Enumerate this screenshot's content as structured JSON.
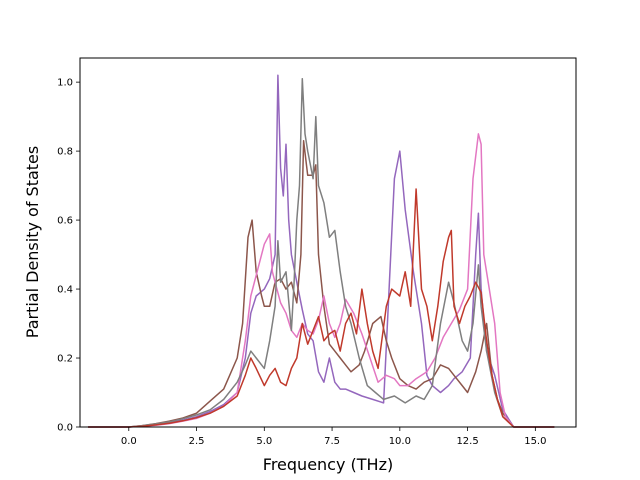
{
  "chart_data": {
    "type": "line",
    "xlabel": "Frequency (THz)",
    "ylabel": "Partial Density of States",
    "xlim": [
      -1.8,
      16.5
    ],
    "ylim": [
      0.0,
      1.07
    ],
    "xticks": [
      0.0,
      2.5,
      5.0,
      7.5,
      10.0,
      12.5,
      15.0
    ],
    "xtick_labels": [
      "0.0",
      "2.5",
      "5.0",
      "7.5",
      "10.0",
      "12.5",
      "15.0"
    ],
    "yticks": [
      0.0,
      0.2,
      0.4,
      0.6,
      0.8,
      1.0
    ],
    "ytick_labels": [
      "0.0",
      "0.2",
      "0.4",
      "0.6",
      "0.8",
      "1.0"
    ],
    "grid": false,
    "legend": "none",
    "series": [
      {
        "color": "#9467bd",
        "points": [
          [
            -1.5,
            0
          ],
          [
            0,
            0
          ],
          [
            0.5,
            0.003
          ],
          [
            1,
            0.007
          ],
          [
            1.5,
            0.013
          ],
          [
            2,
            0.02
          ],
          [
            2.5,
            0.03
          ],
          [
            3,
            0.045
          ],
          [
            3.5,
            0.065
          ],
          [
            4,
            0.1
          ],
          [
            4.3,
            0.2
          ],
          [
            4.5,
            0.33
          ],
          [
            4.7,
            0.38
          ],
          [
            5.0,
            0.4
          ],
          [
            5.2,
            0.43
          ],
          [
            5.4,
            0.5
          ],
          [
            5.5,
            1.02
          ],
          [
            5.6,
            0.75
          ],
          [
            5.7,
            0.67
          ],
          [
            5.8,
            0.82
          ],
          [
            5.9,
            0.6
          ],
          [
            6.0,
            0.5
          ],
          [
            6.2,
            0.42
          ],
          [
            6.4,
            0.34
          ],
          [
            6.6,
            0.27
          ],
          [
            6.8,
            0.25
          ],
          [
            7.0,
            0.16
          ],
          [
            7.2,
            0.13
          ],
          [
            7.4,
            0.2
          ],
          [
            7.6,
            0.13
          ],
          [
            7.8,
            0.11
          ],
          [
            8.0,
            0.11
          ],
          [
            8.3,
            0.1
          ],
          [
            8.6,
            0.09
          ],
          [
            9.0,
            0.08
          ],
          [
            9.4,
            0.07
          ],
          [
            9.8,
            0.72
          ],
          [
            10.0,
            0.8
          ],
          [
            10.2,
            0.63
          ],
          [
            10.5,
            0.45
          ],
          [
            10.8,
            0.3
          ],
          [
            11.0,
            0.15
          ],
          [
            11.2,
            0.12
          ],
          [
            11.5,
            0.1
          ],
          [
            11.8,
            0.12
          ],
          [
            12.0,
            0.14
          ],
          [
            12.3,
            0.16
          ],
          [
            12.6,
            0.2
          ],
          [
            12.8,
            0.5
          ],
          [
            12.9,
            0.62
          ],
          [
            13.0,
            0.4
          ],
          [
            13.2,
            0.22
          ],
          [
            13.5,
            0.15
          ],
          [
            13.8,
            0.05
          ],
          [
            14.2,
            0.0
          ],
          [
            15.7,
            0
          ]
        ]
      },
      {
        "color": "#8c564b",
        "points": [
          [
            -1.5,
            0
          ],
          [
            0,
            0
          ],
          [
            0.5,
            0.004
          ],
          [
            1,
            0.01
          ],
          [
            1.5,
            0.017
          ],
          [
            2,
            0.026
          ],
          [
            2.5,
            0.04
          ],
          [
            3,
            0.075
          ],
          [
            3.5,
            0.11
          ],
          [
            4,
            0.2
          ],
          [
            4.2,
            0.3
          ],
          [
            4.4,
            0.55
          ],
          [
            4.55,
            0.6
          ],
          [
            4.7,
            0.45
          ],
          [
            4.9,
            0.38
          ],
          [
            5.0,
            0.35
          ],
          [
            5.2,
            0.35
          ],
          [
            5.4,
            0.42
          ],
          [
            5.6,
            0.43
          ],
          [
            5.8,
            0.4
          ],
          [
            6.0,
            0.42
          ],
          [
            6.2,
            0.36
          ],
          [
            6.35,
            0.5
          ],
          [
            6.45,
            0.83
          ],
          [
            6.6,
            0.73
          ],
          [
            6.8,
            0.73
          ],
          [
            6.9,
            0.76
          ],
          [
            7.0,
            0.5
          ],
          [
            7.2,
            0.35
          ],
          [
            7.4,
            0.24
          ],
          [
            7.6,
            0.22
          ],
          [
            7.8,
            0.2
          ],
          [
            8.0,
            0.18
          ],
          [
            8.2,
            0.16
          ],
          [
            8.5,
            0.18
          ],
          [
            8.7,
            0.22
          ],
          [
            9.0,
            0.3
          ],
          [
            9.3,
            0.32
          ],
          [
            9.5,
            0.25
          ],
          [
            9.7,
            0.2
          ],
          [
            10.0,
            0.14
          ],
          [
            10.3,
            0.12
          ],
          [
            10.6,
            0.11
          ],
          [
            10.9,
            0.13
          ],
          [
            11.2,
            0.14
          ],
          [
            11.5,
            0.18
          ],
          [
            11.8,
            0.17
          ],
          [
            12.0,
            0.15
          ],
          [
            12.3,
            0.12
          ],
          [
            12.5,
            0.1
          ],
          [
            12.8,
            0.16
          ],
          [
            13.0,
            0.22
          ],
          [
            13.2,
            0.3
          ],
          [
            13.4,
            0.15
          ],
          [
            13.6,
            0.08
          ],
          [
            13.8,
            0.04
          ],
          [
            14.2,
            0.0
          ],
          [
            15.7,
            0
          ]
        ]
      },
      {
        "color": "#e377c2",
        "points": [
          [
            -1.5,
            0
          ],
          [
            0,
            0
          ],
          [
            0.5,
            0.002
          ],
          [
            1,
            0.005
          ],
          [
            1.5,
            0.01
          ],
          [
            2,
            0.017
          ],
          [
            2.5,
            0.025
          ],
          [
            3,
            0.04
          ],
          [
            3.5,
            0.06
          ],
          [
            4,
            0.1
          ],
          [
            4.3,
            0.25
          ],
          [
            4.5,
            0.38
          ],
          [
            4.7,
            0.44
          ],
          [
            5.0,
            0.53
          ],
          [
            5.2,
            0.56
          ],
          [
            5.3,
            0.45
          ],
          [
            5.4,
            0.42
          ],
          [
            5.6,
            0.36
          ],
          [
            5.8,
            0.33
          ],
          [
            6.0,
            0.28
          ],
          [
            6.2,
            0.26
          ],
          [
            6.4,
            0.3
          ],
          [
            6.6,
            0.28
          ],
          [
            6.8,
            0.27
          ],
          [
            7.0,
            0.31
          ],
          [
            7.2,
            0.38
          ],
          [
            7.4,
            0.3
          ],
          [
            7.6,
            0.26
          ],
          [
            7.8,
            0.3
          ],
          [
            8.0,
            0.37
          ],
          [
            8.3,
            0.33
          ],
          [
            8.6,
            0.27
          ],
          [
            8.9,
            0.2
          ],
          [
            9.2,
            0.13
          ],
          [
            9.5,
            0.15
          ],
          [
            9.8,
            0.14
          ],
          [
            10.0,
            0.12
          ],
          [
            10.3,
            0.12
          ],
          [
            10.6,
            0.14
          ],
          [
            11.0,
            0.16
          ],
          [
            11.3,
            0.2
          ],
          [
            11.6,
            0.26
          ],
          [
            11.9,
            0.3
          ],
          [
            12.2,
            0.34
          ],
          [
            12.5,
            0.4
          ],
          [
            12.7,
            0.72
          ],
          [
            12.9,
            0.85
          ],
          [
            13.0,
            0.82
          ],
          [
            13.1,
            0.5
          ],
          [
            13.3,
            0.4
          ],
          [
            13.5,
            0.3
          ],
          [
            13.7,
            0.1
          ],
          [
            13.9,
            0.03
          ],
          [
            14.2,
            0.0
          ],
          [
            15.7,
            0
          ]
        ]
      },
      {
        "color": "#7f7f7f",
        "points": [
          [
            -1.5,
            0
          ],
          [
            0,
            0
          ],
          [
            0.5,
            0.004
          ],
          [
            1,
            0.009
          ],
          [
            1.5,
            0.015
          ],
          [
            2,
            0.024
          ],
          [
            2.5,
            0.035
          ],
          [
            3,
            0.05
          ],
          [
            3.5,
            0.08
          ],
          [
            4,
            0.13
          ],
          [
            4.3,
            0.18
          ],
          [
            4.5,
            0.22
          ],
          [
            4.7,
            0.2
          ],
          [
            5.0,
            0.17
          ],
          [
            5.2,
            0.25
          ],
          [
            5.4,
            0.35
          ],
          [
            5.5,
            0.54
          ],
          [
            5.6,
            0.42
          ],
          [
            5.8,
            0.45
          ],
          [
            6.0,
            0.28
          ],
          [
            6.1,
            0.42
          ],
          [
            6.2,
            0.6
          ],
          [
            6.3,
            0.7
          ],
          [
            6.4,
            1.01
          ],
          [
            6.5,
            0.85
          ],
          [
            6.6,
            0.8
          ],
          [
            6.8,
            0.72
          ],
          [
            6.9,
            0.9
          ],
          [
            7.0,
            0.7
          ],
          [
            7.2,
            0.65
          ],
          [
            7.4,
            0.55
          ],
          [
            7.6,
            0.57
          ],
          [
            7.8,
            0.45
          ],
          [
            8.0,
            0.35
          ],
          [
            8.2,
            0.3
          ],
          [
            8.5,
            0.2
          ],
          [
            8.8,
            0.12
          ],
          [
            9.1,
            0.1
          ],
          [
            9.4,
            0.08
          ],
          [
            9.8,
            0.09
          ],
          [
            10.2,
            0.07
          ],
          [
            10.6,
            0.09
          ],
          [
            10.9,
            0.08
          ],
          [
            11.2,
            0.12
          ],
          [
            11.5,
            0.3
          ],
          [
            11.8,
            0.42
          ],
          [
            12.0,
            0.36
          ],
          [
            12.3,
            0.25
          ],
          [
            12.5,
            0.22
          ],
          [
            12.7,
            0.3
          ],
          [
            12.9,
            0.47
          ],
          [
            13.0,
            0.35
          ],
          [
            13.2,
            0.22
          ],
          [
            13.5,
            0.1
          ],
          [
            13.8,
            0.03
          ],
          [
            14.2,
            0.0
          ],
          [
            15.7,
            0
          ]
        ]
      },
      {
        "color": "#c0392b",
        "points": [
          [
            -1.5,
            0
          ],
          [
            0,
            0
          ],
          [
            0.5,
            0.002
          ],
          [
            1,
            0.006
          ],
          [
            1.5,
            0.011
          ],
          [
            2,
            0.018
          ],
          [
            2.5,
            0.027
          ],
          [
            3,
            0.04
          ],
          [
            3.5,
            0.06
          ],
          [
            4,
            0.09
          ],
          [
            4.3,
            0.15
          ],
          [
            4.5,
            0.2
          ],
          [
            4.7,
            0.17
          ],
          [
            5.0,
            0.12
          ],
          [
            5.2,
            0.15
          ],
          [
            5.4,
            0.17
          ],
          [
            5.6,
            0.13
          ],
          [
            5.8,
            0.12
          ],
          [
            6.0,
            0.17
          ],
          [
            6.2,
            0.2
          ],
          [
            6.4,
            0.3
          ],
          [
            6.6,
            0.24
          ],
          [
            6.8,
            0.28
          ],
          [
            7.0,
            0.32
          ],
          [
            7.2,
            0.25
          ],
          [
            7.4,
            0.27
          ],
          [
            7.6,
            0.28
          ],
          [
            7.8,
            0.22
          ],
          [
            8.0,
            0.3
          ],
          [
            8.2,
            0.33
          ],
          [
            8.4,
            0.27
          ],
          [
            8.6,
            0.4
          ],
          [
            8.8,
            0.3
          ],
          [
            9.0,
            0.22
          ],
          [
            9.2,
            0.17
          ],
          [
            9.5,
            0.35
          ],
          [
            9.7,
            0.4
          ],
          [
            10.0,
            0.38
          ],
          [
            10.2,
            0.45
          ],
          [
            10.4,
            0.35
          ],
          [
            10.6,
            0.69
          ],
          [
            10.8,
            0.4
          ],
          [
            11.0,
            0.35
          ],
          [
            11.2,
            0.25
          ],
          [
            11.4,
            0.35
          ],
          [
            11.6,
            0.48
          ],
          [
            11.8,
            0.55
          ],
          [
            11.9,
            0.57
          ],
          [
            12.0,
            0.35
          ],
          [
            12.2,
            0.3
          ],
          [
            12.4,
            0.35
          ],
          [
            12.6,
            0.38
          ],
          [
            12.8,
            0.42
          ],
          [
            13.0,
            0.39
          ],
          [
            13.2,
            0.25
          ],
          [
            13.4,
            0.15
          ],
          [
            13.6,
            0.08
          ],
          [
            13.8,
            0.03
          ],
          [
            14.2,
            0.0
          ],
          [
            15.7,
            0
          ]
        ]
      }
    ]
  }
}
